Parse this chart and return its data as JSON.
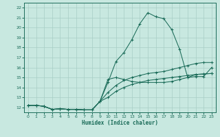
{
  "xlabel": "Humidex (Indice chaleur)",
  "bg_color": "#c8e8e0",
  "grid_color": "#a8cec5",
  "line_color": "#1a6b58",
  "xlim": [
    -0.5,
    23.5
  ],
  "ylim": [
    11.5,
    22.5
  ],
  "xticks": [
    0,
    1,
    2,
    3,
    4,
    5,
    6,
    7,
    8,
    9,
    10,
    11,
    12,
    13,
    14,
    15,
    16,
    17,
    18,
    19,
    20,
    21,
    22,
    23
  ],
  "yticks": [
    12,
    13,
    14,
    15,
    16,
    17,
    18,
    19,
    20,
    21,
    22
  ],
  "series": [
    {
      "x": [
        0,
        1,
        2,
        3,
        4,
        5,
        6,
        7,
        8,
        9,
        10,
        11,
        12,
        13,
        14,
        15,
        16,
        17,
        18,
        19,
        20,
        21,
        22,
        23
      ],
      "y": [
        12.2,
        12.2,
        12.1,
        11.8,
        11.85,
        11.8,
        11.8,
        11.75,
        11.75,
        12.6,
        14.5,
        16.6,
        17.5,
        18.8,
        20.4,
        21.5,
        21.1,
        20.9,
        19.8,
        17.8,
        15.0,
        15.1,
        15.1,
        16.0
      ]
    },
    {
      "x": [
        0,
        1,
        2,
        3,
        4,
        5,
        6,
        7,
        8,
        9,
        10,
        11,
        12,
        13,
        14,
        15,
        16,
        17,
        18,
        19,
        20,
        21,
        22,
        23
      ],
      "y": [
        12.2,
        12.2,
        12.1,
        11.8,
        11.85,
        11.8,
        11.8,
        11.75,
        11.75,
        12.6,
        13.5,
        14.2,
        14.7,
        15.0,
        15.2,
        15.4,
        15.5,
        15.6,
        15.8,
        16.0,
        16.2,
        16.4,
        16.5,
        16.5
      ]
    },
    {
      "x": [
        0,
        1,
        2,
        3,
        4,
        5,
        6,
        7,
        8,
        9,
        10,
        11,
        12,
        13,
        14,
        15,
        16,
        17,
        18,
        19,
        20,
        21,
        22,
        23
      ],
      "y": [
        12.2,
        12.2,
        12.1,
        11.8,
        11.85,
        11.8,
        11.8,
        11.75,
        11.75,
        12.6,
        13.0,
        13.6,
        14.0,
        14.3,
        14.5,
        14.7,
        14.8,
        14.9,
        15.0,
        15.1,
        15.2,
        15.3,
        15.35,
        15.4
      ]
    },
    {
      "x": [
        0,
        1,
        2,
        3,
        4,
        5,
        6,
        7,
        8,
        9,
        10,
        11,
        12,
        13,
        14,
        15,
        16,
        17,
        18,
        19,
        20,
        21,
        22,
        23
      ],
      "y": [
        12.2,
        12.2,
        12.1,
        11.8,
        11.85,
        11.8,
        11.8,
        11.75,
        11.75,
        12.6,
        14.8,
        15.0,
        14.8,
        14.6,
        14.5,
        14.5,
        14.5,
        14.5,
        14.6,
        14.8,
        15.0,
        15.3,
        15.35,
        15.4
      ]
    }
  ]
}
